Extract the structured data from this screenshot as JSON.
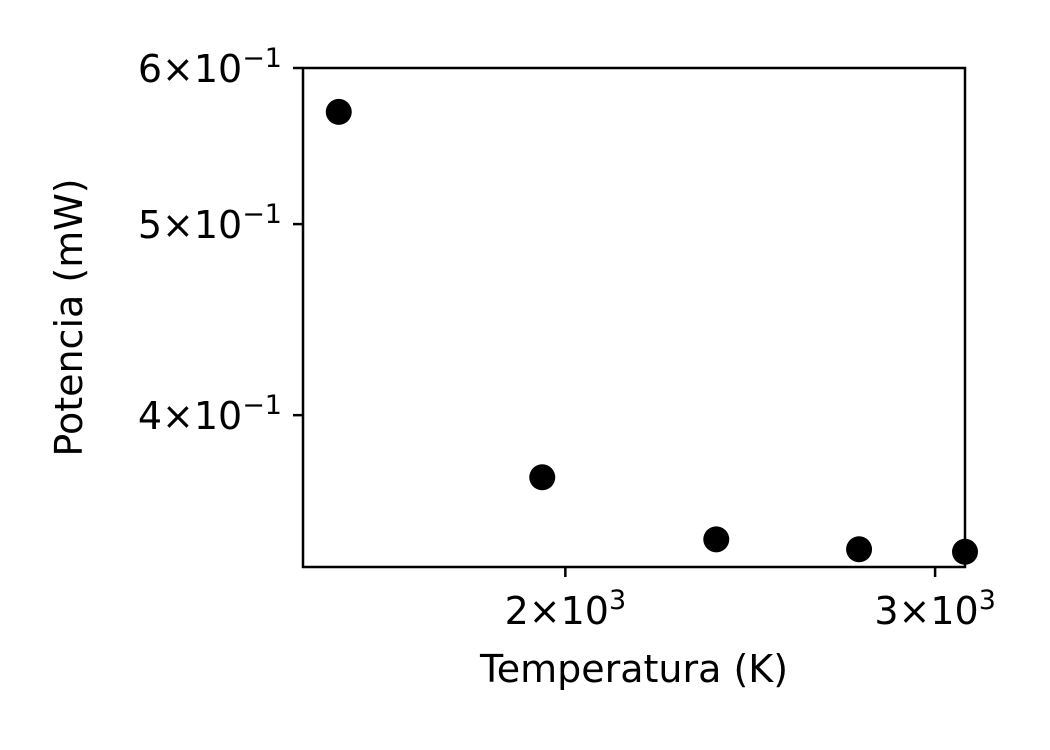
{
  "chart_data": {
    "type": "scatter",
    "title": "",
    "xlabel": "Temperatura (K)",
    "ylabel": "Potencia (mW)",
    "xscale": "log",
    "yscale": "log",
    "xlim": [
      1500,
      3100
    ],
    "ylim": [
      0.335,
      0.6
    ],
    "grid": false,
    "marker_color": "#000000",
    "x": [
      1560,
      1950,
      2360,
      2760,
      3100
    ],
    "y": [
      0.57,
      0.372,
      0.346,
      0.342,
      0.341
    ],
    "xticks": [
      {
        "value": 2000,
        "mantissa": "2",
        "base": "10",
        "exp": "3"
      },
      {
        "value": 3000,
        "mantissa": "3",
        "base": "10",
        "exp": "3"
      }
    ],
    "yticks": [
      {
        "value": 0.4,
        "mantissa": "4",
        "base": "10",
        "exp": "−1"
      },
      {
        "value": 0.5,
        "mantissa": "5",
        "base": "10",
        "exp": "−1"
      },
      {
        "value": 0.6,
        "mantissa": "6",
        "base": "10",
        "exp": "−1"
      }
    ]
  }
}
